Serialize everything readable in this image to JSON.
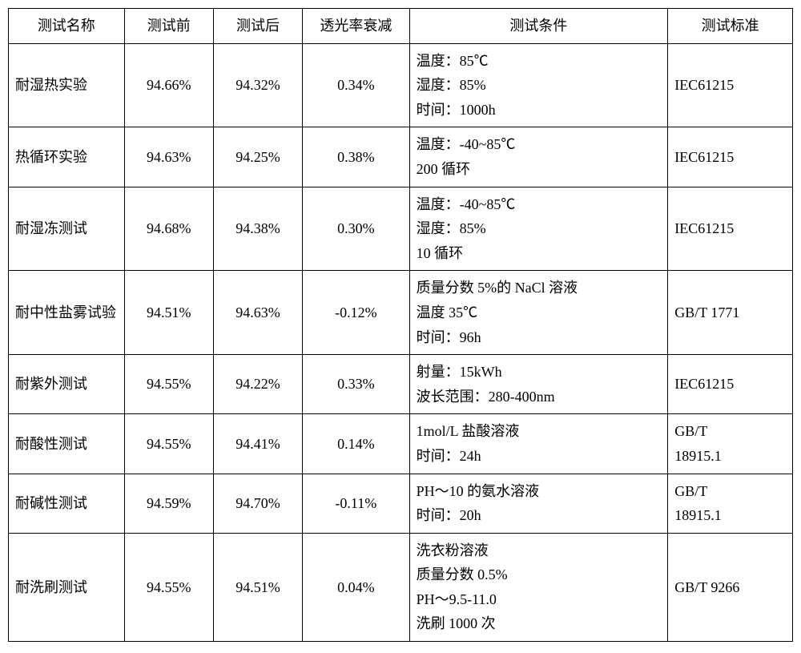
{
  "table": {
    "columns": [
      "测试名称",
      "测试前",
      "测试后",
      "透光率衰减",
      "测试条件",
      "测试标准"
    ],
    "col_classes": [
      "col-name",
      "col-before",
      "col-after",
      "col-decay",
      "col-cond",
      "col-std"
    ],
    "col_align": [
      "left",
      "center",
      "center",
      "center",
      "left",
      "left"
    ],
    "rows": [
      {
        "name": "耐湿热实验",
        "before": "94.66%",
        "after": "94.32%",
        "decay": "0.34%",
        "cond": [
          "温度：85℃",
          "湿度：85%",
          "时间：1000h"
        ],
        "std": [
          "IEC61215"
        ]
      },
      {
        "name": "热循环实验",
        "before": "94.63%",
        "after": "94.25%",
        "decay": "0.38%",
        "cond": [
          "温度：-40~85℃",
          "200 循环"
        ],
        "std": [
          "IEC61215"
        ]
      },
      {
        "name": "耐湿冻测试",
        "before": "94.68%",
        "after": "94.38%",
        "decay": "0.30%",
        "cond": [
          "温度：-40~85℃",
          "湿度：85%",
          "10 循环"
        ],
        "std": [
          "IEC61215"
        ]
      },
      {
        "name": "耐中性盐雾试验",
        "before": "94.51%",
        "after": "94.63%",
        "decay": "-0.12%",
        "cond": [
          "质量分数 5%的 NaCl 溶液",
          "温度 35℃",
          "时间：96h"
        ],
        "std": [
          "GB/T 1771"
        ]
      },
      {
        "name": "耐紫外测试",
        "before": "94.55%",
        "after": "94.22%",
        "decay": "0.33%",
        "cond": [
          "射量：15kWh",
          "波长范围：280-400nm"
        ],
        "std": [
          "IEC61215"
        ]
      },
      {
        "name": "耐酸性测试",
        "before": "94.55%",
        "after": "94.41%",
        "decay": "0.14%",
        "cond": [
          "1mol/L 盐酸溶液",
          "时间：24h"
        ],
        "std": [
          "GB/T",
          "18915.1"
        ]
      },
      {
        "name": "耐碱性测试",
        "before": "94.59%",
        "after": "94.70%",
        "decay": "-0.11%",
        "cond": [
          "PH～10 的氨水溶液",
          "时间：20h"
        ],
        "std": [
          "GB/T",
          "18915.1"
        ]
      },
      {
        "name": "耐洗刷测试",
        "before": "94.55%",
        "after": "94.51%",
        "decay": "0.04%",
        "cond": [
          "洗衣粉溶液",
          "质量分数 0.5%",
          "PH～9.5-11.0",
          "洗刷 1000 次"
        ],
        "std": [
          "GB/T 9266"
        ]
      }
    ],
    "border_color": "#000000",
    "background_color": "#ffffff",
    "font_size_pt": 14,
    "font_family": "SimSun"
  }
}
